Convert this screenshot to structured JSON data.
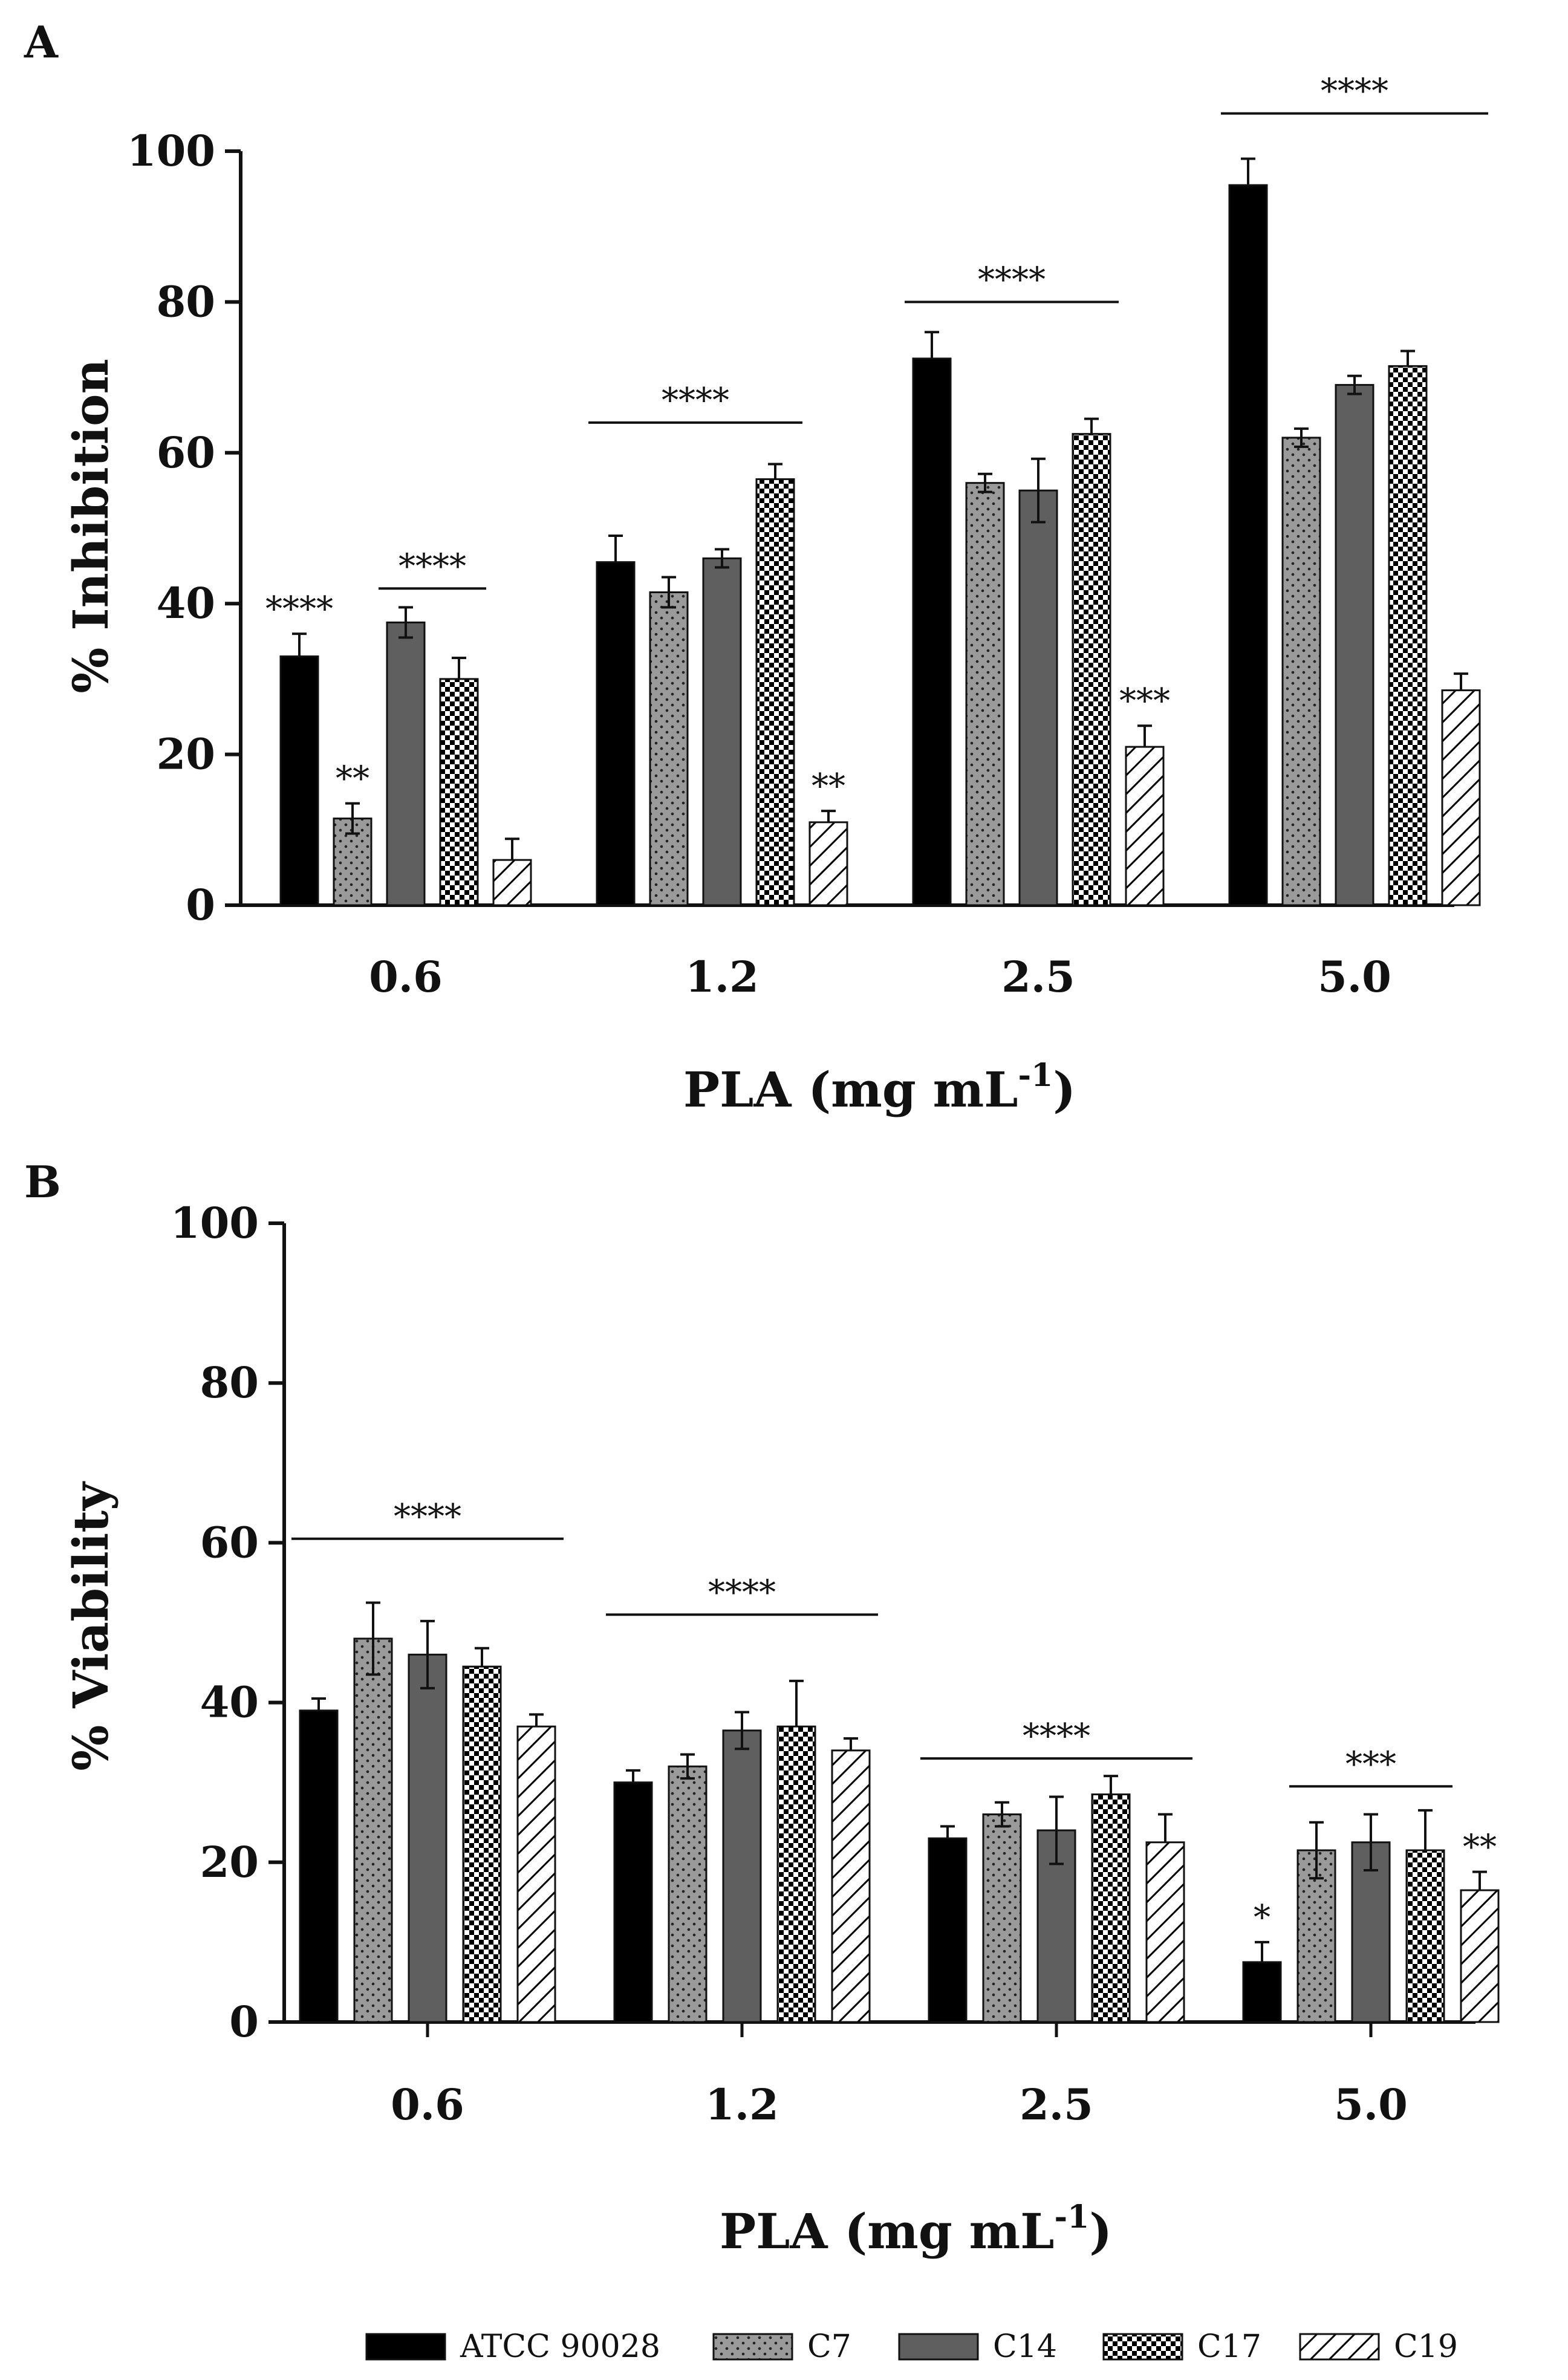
{
  "colors": {
    "atcc": "#000000",
    "c7": "#9a9a9a",
    "c14": "#5f5f5f",
    "c17": "#ffffff",
    "c19": "#ffffff",
    "ink": "#111111"
  },
  "legend": [
    "ATCC 90028",
    "C7",
    "C14",
    "C17",
    "C19"
  ],
  "chart_data": [
    {
      "panel": "A",
      "type": "bar",
      "title": "",
      "xlabel_main": "PLA (mg mL",
      "xlabel_sup": "-1",
      "xlabel_end": ")",
      "ylabel": "% Inhibition",
      "ylim": [
        0,
        100
      ],
      "yticks": [
        "0",
        "20",
        "40",
        "60",
        "80",
        "100"
      ],
      "categories": [
        "0.6",
        "1.2",
        "2.5",
        "5.0"
      ],
      "series": [
        {
          "name": "ATCC 90028",
          "values": [
            33,
            45.5,
            72.5,
            95.5
          ],
          "errors": [
            3,
            3.5,
            3.5,
            3.5
          ]
        },
        {
          "name": "C7",
          "values": [
            11.5,
            41.5,
            56,
            62
          ],
          "errors": [
            2,
            2,
            1.2,
            1.2
          ]
        },
        {
          "name": "C14",
          "values": [
            37.5,
            46,
            55,
            69
          ],
          "errors": [
            2,
            1.2,
            4.2,
            1.2
          ]
        },
        {
          "name": "C17",
          "values": [
            30,
            56.5,
            62.5,
            71.5
          ],
          "errors": [
            2.8,
            2,
            2,
            2
          ]
        },
        {
          "name": "C19",
          "values": [
            6,
            11,
            21,
            28.5
          ],
          "errors": [
            2.8,
            1.5,
            2.8,
            2.2
          ]
        }
      ],
      "annotations": [
        {
          "text": "****",
          "type": "star",
          "group": 0,
          "series": 0
        },
        {
          "text": "**",
          "type": "star",
          "group": 0,
          "series": 1
        },
        {
          "text": "****",
          "type": "line",
          "group": 0,
          "from": 2,
          "to": 3,
          "y": 42
        },
        {
          "text": "****",
          "type": "line",
          "group": 1,
          "from": 0,
          "to": 3,
          "y": 64
        },
        {
          "text": "**",
          "type": "star",
          "group": 1,
          "series": 4
        },
        {
          "text": "****",
          "type": "line",
          "group": 2,
          "from": 0,
          "to": 3,
          "y": 80
        },
        {
          "text": "***",
          "type": "star",
          "group": 2,
          "series": 4
        },
        {
          "text": "****",
          "type": "line",
          "group": 3,
          "from": 0,
          "to": 4,
          "y": 105
        }
      ]
    },
    {
      "panel": "B",
      "type": "bar",
      "title": "",
      "xlabel_main": "PLA (mg mL",
      "xlabel_sup": "-1",
      "xlabel_end": ")",
      "ylabel": "% Viability",
      "ylim": [
        0,
        100
      ],
      "yticks": [
        "0",
        "20",
        "40",
        "60",
        "80",
        "100"
      ],
      "categories": [
        "0.6",
        "1.2",
        "2.5",
        "5.0"
      ],
      "series": [
        {
          "name": "ATCC 90028",
          "values": [
            39,
            30,
            23,
            7.5
          ],
          "errors": [
            1.5,
            1.5,
            1.5,
            2.5
          ]
        },
        {
          "name": "C7",
          "values": [
            48,
            32,
            26,
            21.5
          ],
          "errors": [
            4.5,
            1.5,
            1.5,
            3.5
          ]
        },
        {
          "name": "C14",
          "values": [
            46,
            36.5,
            24,
            22.5
          ],
          "errors": [
            4.2,
            2.3,
            4.2,
            3.5
          ]
        },
        {
          "name": "C17",
          "values": [
            44.5,
            37,
            28.5,
            21.5
          ],
          "errors": [
            2.3,
            5.7,
            2.3,
            5
          ]
        },
        {
          "name": "C19",
          "values": [
            37,
            34,
            22.5,
            16.5
          ],
          "errors": [
            1.5,
            1.5,
            3.5,
            2.3
          ]
        }
      ],
      "annotations": [
        {
          "text": "****",
          "type": "line",
          "group": 0,
          "from": 0,
          "to": 4,
          "y": 60.5
        },
        {
          "text": "****",
          "type": "line",
          "group": 1,
          "from": 0,
          "to": 4,
          "y": 51
        },
        {
          "text": "****",
          "type": "line",
          "group": 2,
          "from": 0,
          "to": 4,
          "y": 33
        },
        {
          "text": "*",
          "type": "star",
          "group": 3,
          "series": 0
        },
        {
          "text": "***",
          "type": "line",
          "group": 3,
          "from": 1,
          "to": 3,
          "y": 29.5
        },
        {
          "text": "**",
          "type": "star",
          "group": 3,
          "series": 4
        }
      ]
    }
  ]
}
